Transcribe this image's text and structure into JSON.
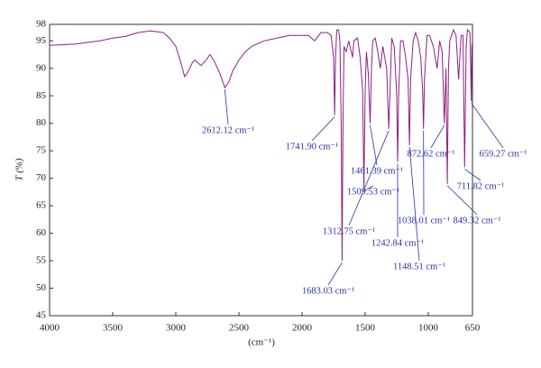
{
  "chart_data": {
    "type": "line",
    "ylabel": "T (%)",
    "xlabel": "(cm⁻¹)",
    "xlim": [
      4000,
      650
    ],
    "ylim": [
      45,
      98
    ],
    "xticks": [
      4000,
      3500,
      3000,
      2500,
      2000,
      1500,
      1000,
      650
    ],
    "yticks": [
      45,
      50,
      55,
      60,
      65,
      70,
      75,
      80,
      85,
      90,
      95,
      98
    ],
    "color": "#8e1f82",
    "x": [
      4000,
      3800,
      3600,
      3500,
      3400,
      3300,
      3200,
      3100,
      3050,
      3000,
      2960,
      2930,
      2900,
      2870,
      2850,
      2800,
      2760,
      2730,
      2700,
      2650,
      2612,
      2580,
      2550,
      2500,
      2450,
      2400,
      2300,
      2200,
      2100,
      2000,
      1950,
      1900,
      1850,
      1800,
      1770,
      1750,
      1742,
      1735,
      1725,
      1710,
      1700,
      1690,
      1683,
      1676,
      1668,
      1650,
      1630,
      1600,
      1590,
      1560,
      1540,
      1520,
      1510,
      1500,
      1490,
      1475,
      1461,
      1450,
      1440,
      1420,
      1400,
      1380,
      1360,
      1330,
      1313,
      1300,
      1290,
      1270,
      1250,
      1243,
      1235,
      1220,
      1200,
      1180,
      1160,
      1149,
      1140,
      1120,
      1100,
      1080,
      1060,
      1045,
      1038,
      1030,
      1010,
      990,
      960,
      930,
      910,
      890,
      873,
      860,
      849,
      840,
      830,
      815,
      800,
      780,
      760,
      740,
      725,
      712,
      700,
      690,
      670,
      659,
      655,
      650
    ],
    "values": [
      94.2,
      94.4,
      95.0,
      95.5,
      95.8,
      96.5,
      96.8,
      96.5,
      95.5,
      94,
      91,
      88.5,
      89.5,
      91,
      91.5,
      90.5,
      91.5,
      92.5,
      91.5,
      89,
      86.5,
      87.5,
      89.5,
      91.5,
      93,
      94,
      95,
      95.5,
      96,
      96,
      96,
      95,
      96.5,
      96.5,
      96,
      92,
      81.5,
      92,
      97,
      97,
      95,
      80,
      55,
      80,
      94,
      93,
      95,
      92,
      95,
      95.5,
      92,
      86,
      68,
      86,
      93,
      89,
      80,
      90,
      95,
      95.5,
      93,
      90,
      94,
      90,
      79,
      88,
      95.5,
      94,
      85,
      73,
      85,
      95,
      95,
      92,
      88,
      76,
      88,
      95,
      96.5,
      95,
      92,
      86,
      79,
      88,
      96,
      96,
      94,
      90,
      95,
      93,
      80,
      90,
      69,
      90,
      95,
      96,
      97,
      96,
      88,
      96,
      96,
      72,
      94,
      97,
      96.5,
      84,
      94,
      95
    ],
    "annotations": [
      {
        "x": 2612.12,
        "y": 86.5,
        "label": "2612.12 cm⁻¹"
      },
      {
        "x": 1741.9,
        "y": 81.5,
        "label": "1741.90 cm⁻¹"
      },
      {
        "x": 1683.03,
        "y": 55,
        "label": "1683.03 cm⁻¹"
      },
      {
        "x": 1461.39,
        "y": 80,
        "label": "1461.39 cm⁻¹"
      },
      {
        "x": 1509.53,
        "y": 68,
        "label": "1509.53 cm⁻¹"
      },
      {
        "x": 1312.75,
        "y": 79,
        "label": "1312.75 cm⁻¹"
      },
      {
        "x": 1242.84,
        "y": 73,
        "label": "1242.84 cm⁻¹"
      },
      {
        "x": 1148.51,
        "y": 76,
        "label": "1148.51 cm⁻¹"
      },
      {
        "x": 1038.01,
        "y": 79,
        "label": "1038.01 cm⁻¹"
      },
      {
        "x": 872.62,
        "y": 80,
        "label": "872.62 cm⁻¹"
      },
      {
        "x": 849.32,
        "y": 69,
        "label": "849.32 cm⁻¹"
      },
      {
        "x": 711.82,
        "y": 72,
        "label": "711.82 cm⁻¹"
      },
      {
        "x": 659.27,
        "y": 84,
        "label": "659.27 cm⁻¹"
      }
    ]
  }
}
